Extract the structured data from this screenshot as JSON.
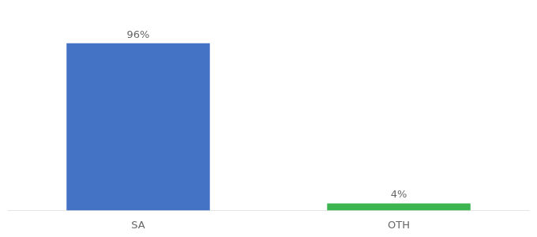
{
  "chart_data": {
    "type": "bar",
    "categories": [
      "SA",
      "OTH"
    ],
    "values": [
      96,
      4
    ],
    "value_labels": [
      "96%",
      "4%"
    ],
    "colors": [
      "#4472c4",
      "#3cb550"
    ],
    "ylim": [
      0,
      110
    ],
    "grid": false,
    "data_labels": true,
    "tick_labels": "x"
  }
}
